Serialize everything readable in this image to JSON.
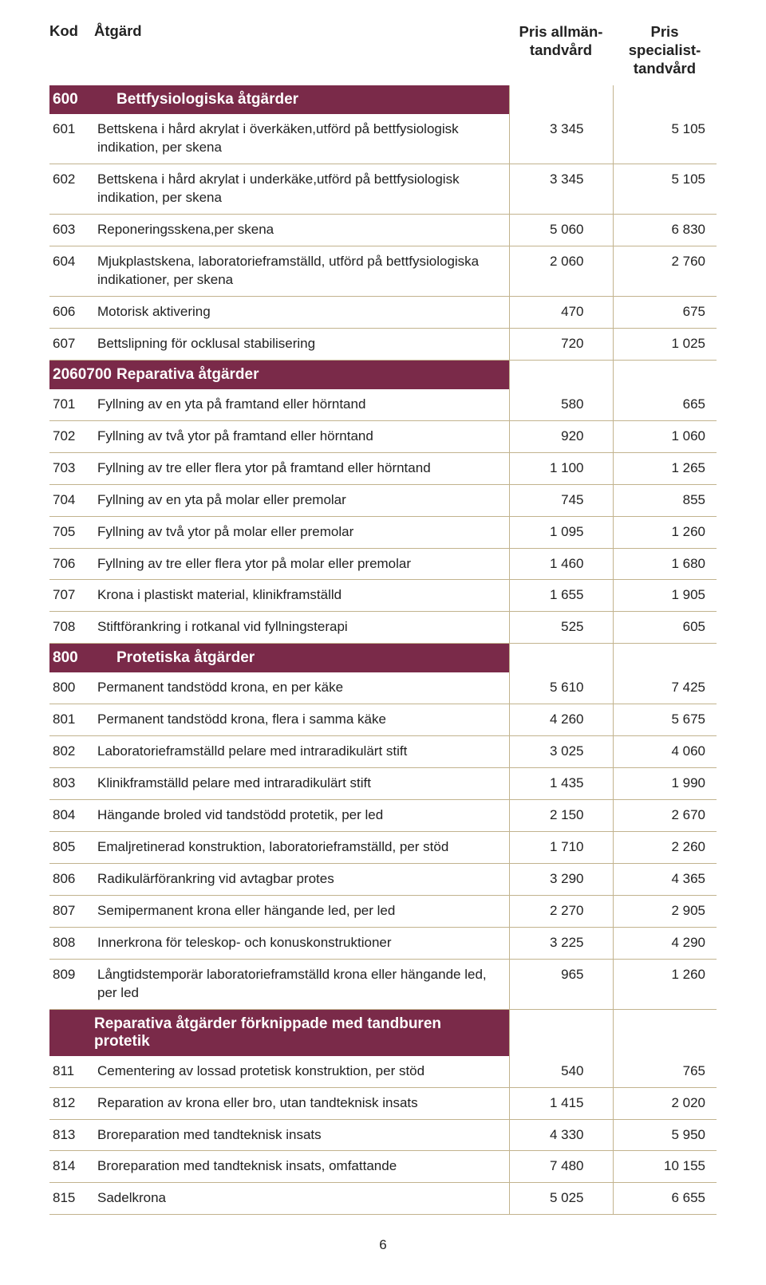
{
  "header": {
    "kod": "Kod",
    "atgard": "Åtgärd",
    "pris1_l1": "Pris allmän-",
    "pris1_l2": "tandvård",
    "pris2_l1": "Pris specialist-",
    "pris2_l2": "tandvård"
  },
  "colors": {
    "section_bg": "#7a2a49",
    "section_fg": "#ffffff",
    "border": "#c2b38e",
    "text": "#222222"
  },
  "sections": [
    {
      "kod": "600",
      "title": "Bettfysiologiska åtgärder",
      "rows": [
        {
          "kod": "601",
          "desc": "Bettskena i hård akrylat i överkäken,utförd på bettfysiologisk indikation, per skena",
          "p1": "3 345",
          "p2": "5 105"
        },
        {
          "kod": "602",
          "desc": "Bettskena i hård akrylat i underkäke,utförd på bettfysiologisk indikation, per skena",
          "p1": "3 345",
          "p2": "5 105"
        },
        {
          "kod": "603",
          "desc": "Reponeringsskena,per skena",
          "p1": "5 060",
          "p2": "6 830"
        },
        {
          "kod": "604",
          "desc": "Mjukplastskena, laboratorieframställd, utförd på bettfysiologiska indikationer, per skena",
          "p1": "2 060",
          "p2": "2 760"
        },
        {
          "kod": "606",
          "desc": "Motorisk aktivering",
          "p1": "470",
          "p2": "675"
        },
        {
          "kod": "607",
          "desc": "Bettslipning för ocklusal stabilisering",
          "p1": "720",
          "p2": "1 025"
        }
      ]
    },
    {
      "kod": "2060700",
      "title": "Reparativa åtgärder",
      "rows": [
        {
          "kod": "701",
          "desc": "Fyllning av en yta på framtand eller hörntand",
          "p1": "580",
          "p2": "665"
        },
        {
          "kod": "702",
          "desc": "Fyllning av två ytor på framtand eller hörntand",
          "p1": "920",
          "p2": "1 060"
        },
        {
          "kod": "703",
          "desc": "Fyllning av tre eller flera ytor på framtand eller hörntand",
          "p1": "1 100",
          "p2": "1 265"
        },
        {
          "kod": "704",
          "desc": "Fyllning av en yta på molar eller premolar",
          "p1": "745",
          "p2": "855"
        },
        {
          "kod": "705",
          "desc": "Fyllning av två ytor på molar eller premolar",
          "p1": "1 095",
          "p2": "1 260"
        },
        {
          "kod": "706",
          "desc": "Fyllning av tre eller flera ytor på molar eller premolar",
          "p1": "1 460",
          "p2": "1 680"
        },
        {
          "kod": "707",
          "desc": "Krona i plastiskt material, klinikframställd",
          "p1": "1 655",
          "p2": "1 905"
        },
        {
          "kod": "708",
          "desc": "Stiftförankring i rotkanal vid fyllningsterapi",
          "p1": "525",
          "p2": "605"
        }
      ]
    },
    {
      "kod": "800",
      "title": "Protetiska åtgärder",
      "rows": [
        {
          "kod": "800",
          "desc": "Permanent tandstödd krona, en per käke",
          "p1": "5 610",
          "p2": "7 425"
        },
        {
          "kod": "801",
          "desc": "Permanent tandstödd krona, flera i samma käke",
          "p1": "4 260",
          "p2": "5 675"
        },
        {
          "kod": "802",
          "desc": "Laboratorieframställd pelare med intraradikulärt stift",
          "p1": "3 025",
          "p2": "4 060"
        },
        {
          "kod": "803",
          "desc": "Klinikframställd pelare med intraradikulärt stift",
          "p1": "1 435",
          "p2": "1 990"
        },
        {
          "kod": "804",
          "desc": "Hängande broled vid tandstödd protetik, per led",
          "p1": "2 150",
          "p2": "2 670"
        },
        {
          "kod": "805",
          "desc": "Emaljretinerad konstruktion, laboratorieframställd, per stöd",
          "p1": "1 710",
          "p2": "2 260"
        },
        {
          "kod": "806",
          "desc": "Radikulärförankring vid avtagbar protes",
          "p1": "3 290",
          "p2": "4 365"
        },
        {
          "kod": "807",
          "desc": "Semipermanent krona eller hängande led, per led",
          "p1": "2 270",
          "p2": "2 905"
        },
        {
          "kod": "808",
          "desc": "Innerkrona för teleskop- och konuskonstruktioner",
          "p1": "3 225",
          "p2": "4 290"
        },
        {
          "kod": "809",
          "desc": "Långtidstemporär laboratorieframställd krona eller hängande led, per led",
          "p1": "965",
          "p2": "1 260"
        }
      ]
    },
    {
      "kod": "",
      "title": "Reparativa åtgärder förknippade med tandburen protetik",
      "rows": [
        {
          "kod": "811",
          "desc": "Cementering av lossad protetisk konstruktion, per stöd",
          "p1": "540",
          "p2": "765"
        },
        {
          "kod": "812",
          "desc": "Reparation av krona eller bro, utan tandteknisk insats",
          "p1": "1 415",
          "p2": "2 020"
        },
        {
          "kod": "813",
          "desc": "Broreparation med tandteknisk insats",
          "p1": "4 330",
          "p2": "5 950"
        },
        {
          "kod": "814",
          "desc": "Broreparation med tandteknisk insats, omfattande",
          "p1": "7 480",
          "p2": "10 155"
        },
        {
          "kod": "815",
          "desc": "Sadelkrona",
          "p1": "5 025",
          "p2": "6 655"
        }
      ]
    }
  ],
  "page_number": "6"
}
